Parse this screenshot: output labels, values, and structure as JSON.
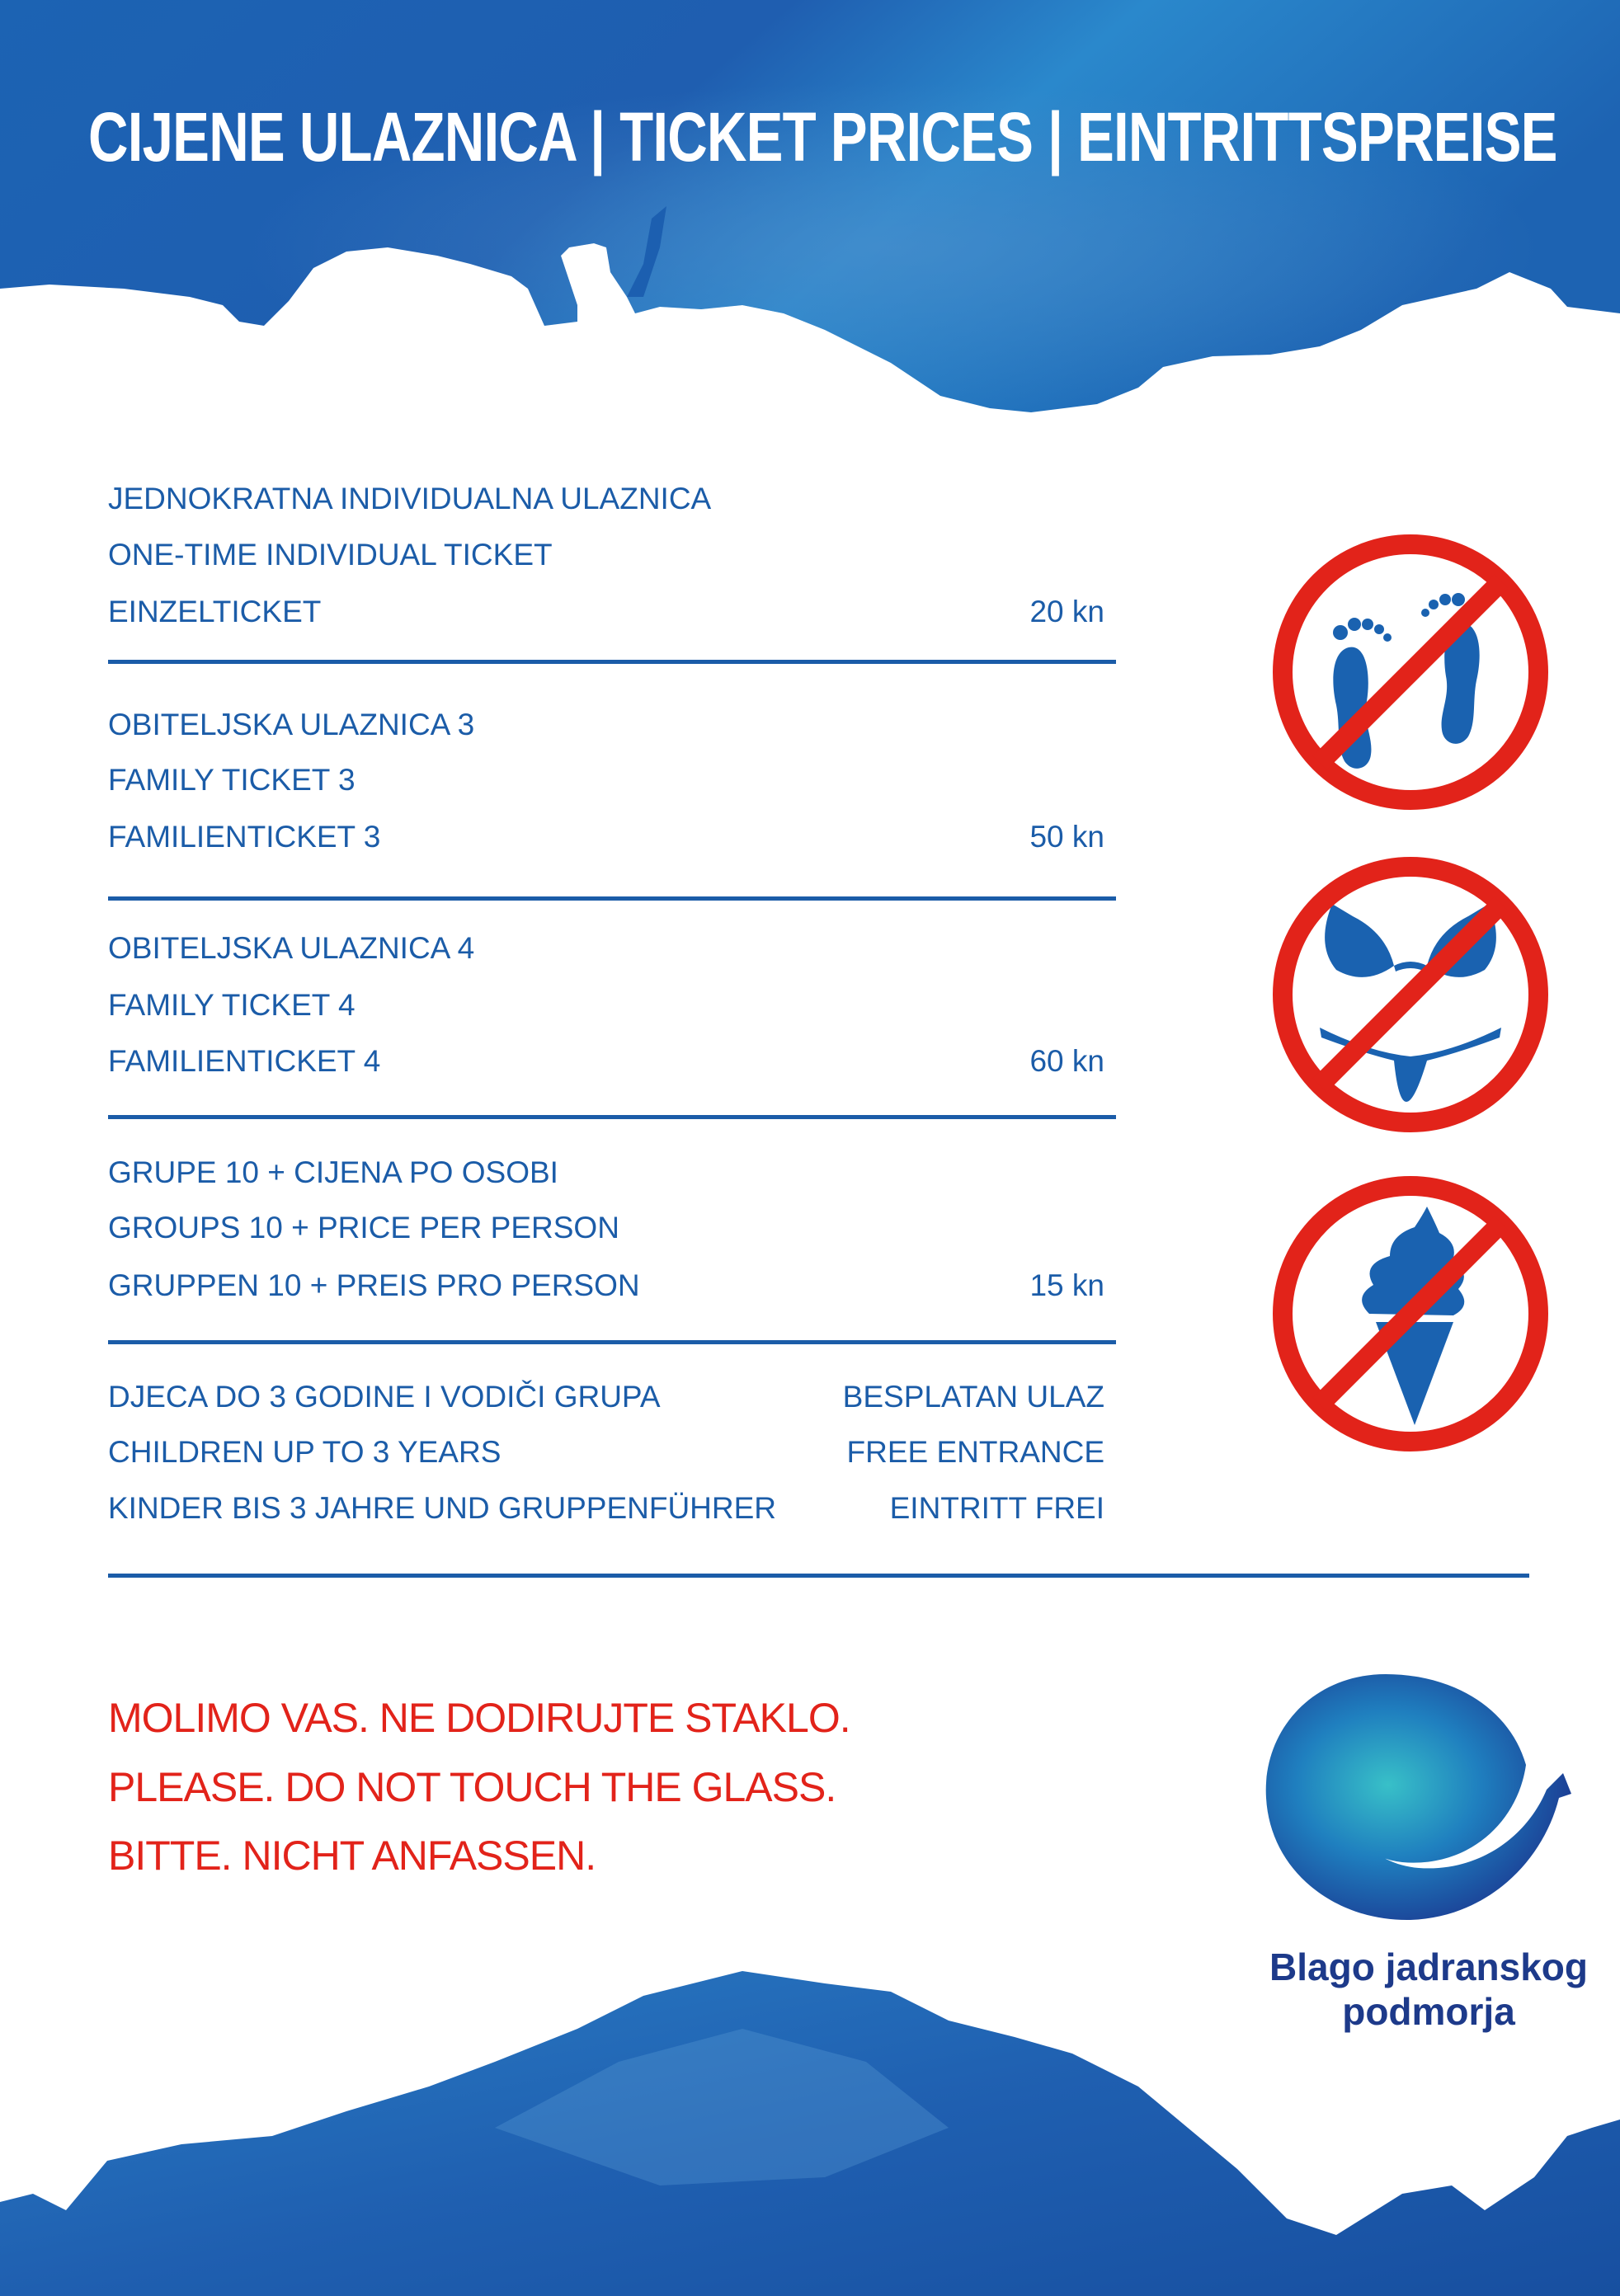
{
  "header": {
    "title": "CIJENE ULAZNICA | TICKET PRICES | EINTRITTSPREISE"
  },
  "tickets": [
    {
      "lines": [
        "JEDNOKRATNA INDIVIDUALNA ULAZNICA",
        "ONE-TIME INDIVIDUAL TICKET",
        "EINZELTICKET"
      ],
      "price": [
        "",
        "",
        "20 kn"
      ]
    },
    {
      "lines": [
        "OBITELJSKA ULAZNICA 3",
        "FAMILY TICKET 3",
        "FAMILIENTICKET 3"
      ],
      "price": [
        "",
        "",
        "50 kn"
      ]
    },
    {
      "lines": [
        "OBITELJSKA ULAZNICA 4",
        "FAMILY TICKET 4",
        "FAMILIENTICKET 4"
      ],
      "price": [
        "",
        "",
        "60 kn"
      ]
    },
    {
      "lines": [
        "GRUPE 10 + CIJENA PO OSOBI",
        "GROUPS 10 + PRICE PER PERSON",
        "GRUPPEN 10 + PREIS PRO PERSON"
      ],
      "price": [
        "",
        "",
        "15 kn"
      ]
    },
    {
      "lines": [
        "DJECA DO 3 GODINE I VODIČI GRUPA",
        "CHILDREN UP TO 3 YEARS",
        "KINDER BIS 3 JAHRE UND GRUPPENFÜHRER"
      ],
      "price": [
        "BESPLATAN ULAZ",
        "FREE ENTRANCE",
        "EINTRITT FREI"
      ]
    }
  ],
  "prohibitions": [
    "no-bare-feet-icon",
    "no-swimwear-icon",
    "no-ice-cream-icon"
  ],
  "notice": [
    "MOLIMO VAS. NE DODIRUJTE STAKLO.",
    "PLEASE. DO NOT TOUCH THE GLASS.",
    "BITTE. NICHT ANFASSEN."
  ],
  "logo": {
    "line1": "Blago jadranskog",
    "line2": "podmorja"
  },
  "colors": {
    "text_blue": "#1b5ca8",
    "warning_red": "#e2231a",
    "logo_navy": "#1d3a8a",
    "prohibition_red": "#e2231a"
  }
}
